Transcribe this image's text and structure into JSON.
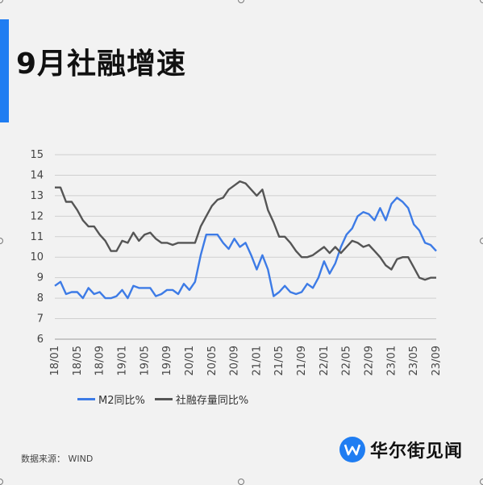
{
  "title": "9月社融增速",
  "source": "数据来源： WIND",
  "logo_text": "华尔街见闻",
  "colors": {
    "accent": "#1f7df2",
    "m2": "#3d7be6",
    "social": "#555555"
  },
  "chart_data": {
    "type": "line",
    "ylim": [
      6,
      15
    ],
    "yticks": [
      6,
      7,
      8,
      9,
      10,
      11,
      12,
      13,
      14,
      15
    ],
    "x_labels": [
      "18/01",
      "18/05",
      "18/09",
      "19/01",
      "19/05",
      "19/09",
      "20/01",
      "20/05",
      "20/09",
      "21/01",
      "21/05",
      "21/09",
      "22/01",
      "22/05",
      "22/09",
      "23/01",
      "23/05",
      "23/09"
    ],
    "grid": true,
    "legend_position": "bottom",
    "series": [
      {
        "name": "M2同比%",
        "values": [
          8.6,
          8.8,
          8.2,
          8.3,
          8.3,
          8.0,
          8.5,
          8.2,
          8.3,
          8.0,
          8.0,
          8.1,
          8.4,
          8.0,
          8.6,
          8.5,
          8.5,
          8.5,
          8.1,
          8.2,
          8.4,
          8.4,
          8.2,
          8.7,
          8.4,
          8.8,
          10.1,
          11.1,
          11.1,
          11.1,
          10.7,
          10.4,
          10.9,
          10.5,
          10.7,
          10.1,
          9.4,
          10.1,
          9.4,
          8.1,
          8.3,
          8.6,
          8.3,
          8.2,
          8.3,
          8.7,
          8.5,
          9.0,
          9.8,
          9.2,
          9.7,
          10.5,
          11.1,
          11.4,
          12.0,
          12.2,
          12.1,
          11.8,
          12.4,
          11.8,
          12.6,
          12.9,
          12.7,
          12.4,
          11.6,
          11.3,
          10.7,
          10.6,
          10.3
        ]
      },
      {
        "name": "社融存量同比%",
        "values": [
          13.4,
          13.4,
          12.7,
          12.7,
          12.3,
          11.8,
          11.5,
          11.5,
          11.1,
          10.8,
          10.3,
          10.3,
          10.8,
          10.7,
          11.2,
          10.8,
          11.1,
          11.2,
          10.9,
          10.7,
          10.7,
          10.6,
          10.7,
          10.7,
          10.7,
          10.7,
          11.5,
          12.0,
          12.5,
          12.8,
          12.9,
          13.3,
          13.5,
          13.7,
          13.6,
          13.3,
          13.0,
          13.3,
          12.3,
          11.7,
          11.0,
          11.0,
          10.7,
          10.3,
          10.0,
          10.0,
          10.1,
          10.3,
          10.5,
          10.2,
          10.5,
          10.2,
          10.5,
          10.8,
          10.7,
          10.5,
          10.6,
          10.3,
          10.0,
          9.6,
          9.4,
          9.9,
          10.0,
          10.0,
          9.5,
          9.0,
          8.9,
          9.0,
          9.0
        ]
      }
    ]
  }
}
